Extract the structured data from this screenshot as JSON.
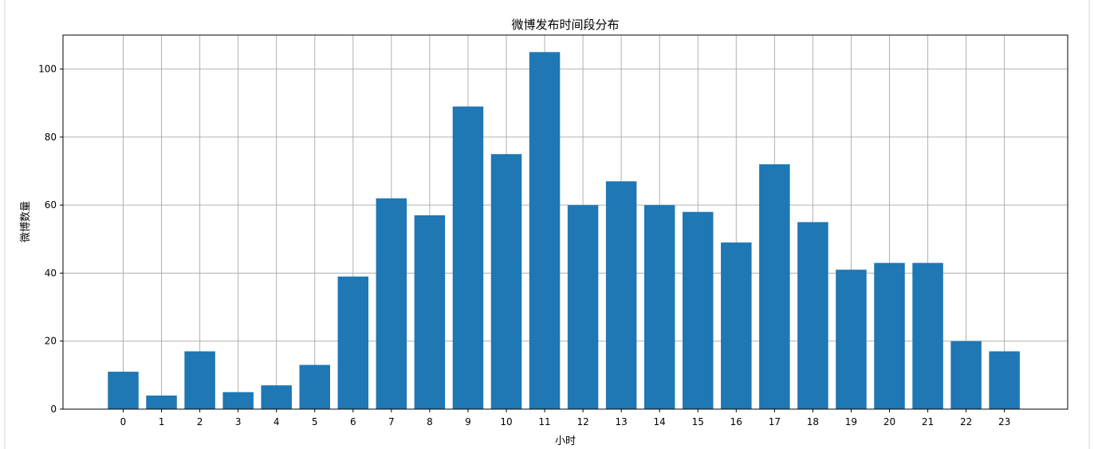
{
  "chart_data": {
    "type": "bar",
    "title": "微博发布时间段分布",
    "xlabel": "小时",
    "ylabel": "微博数量",
    "categories": [
      "0",
      "1",
      "2",
      "3",
      "4",
      "5",
      "6",
      "7",
      "8",
      "9",
      "10",
      "11",
      "12",
      "13",
      "14",
      "15",
      "16",
      "17",
      "18",
      "19",
      "20",
      "21",
      "22",
      "23"
    ],
    "values": [
      11,
      4,
      17,
      5,
      7,
      13,
      39,
      62,
      57,
      89,
      75,
      105,
      60,
      67,
      60,
      58,
      49,
      72,
      55,
      41,
      43,
      43,
      20,
      17
    ],
    "yticks": [
      "0",
      "20",
      "40",
      "60",
      "80",
      "100"
    ],
    "ylim": [
      0,
      110
    ],
    "grid": true,
    "bar_color": "#1f77b4",
    "grid_color": "#b0b0b0"
  }
}
